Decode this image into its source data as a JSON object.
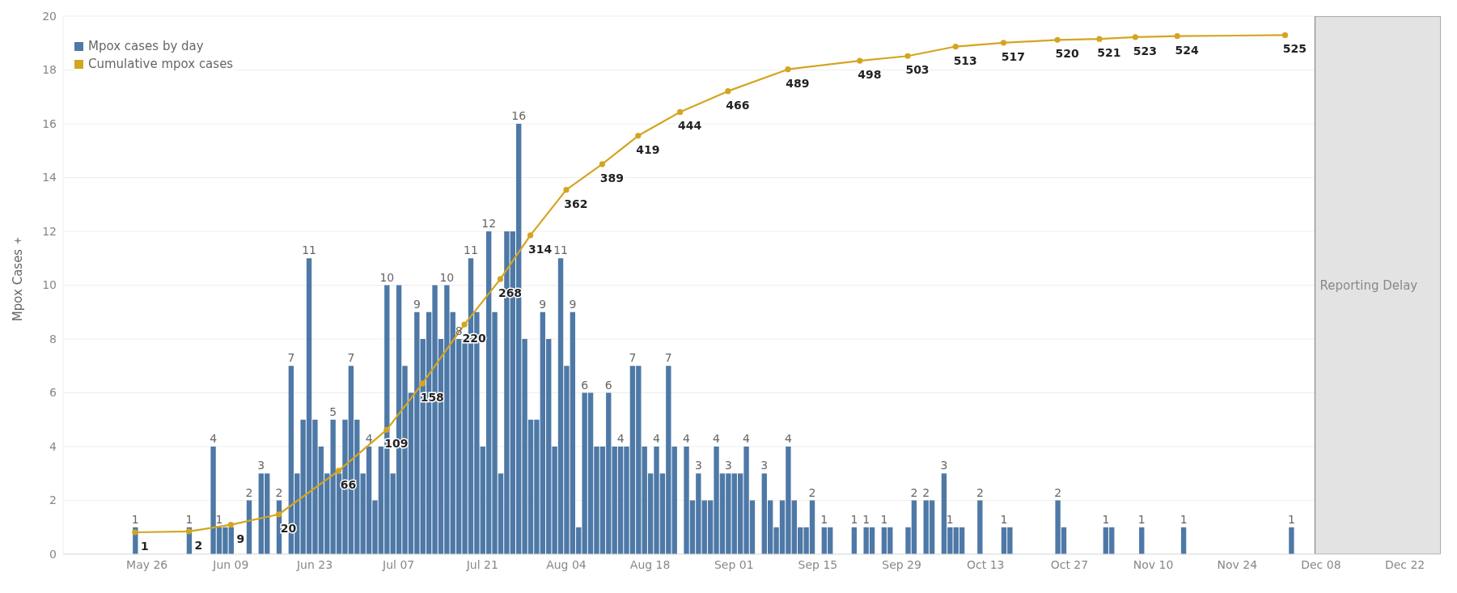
{
  "chart_data": {
    "type": "bar",
    "ylabel": "Mpox Cases",
    "xlim": [
      "--05-12",
      "--12-28"
    ],
    "xticks": [
      {
        "value": "--05-26",
        "label": "May 26"
      },
      {
        "value": "--06-09",
        "label": "Jun 09"
      },
      {
        "value": "--06-23",
        "label": "Jun 23"
      },
      {
        "value": "--07-07",
        "label": "Jul 07"
      },
      {
        "value": "--07-21",
        "label": "Jul 21"
      },
      {
        "value": "--08-04",
        "label": "Aug 04"
      },
      {
        "value": "--08-18",
        "label": "Aug 18"
      },
      {
        "value": "--09-01",
        "label": "Sep 01"
      },
      {
        "value": "--09-15",
        "label": "Sep 15"
      },
      {
        "value": "--09-29",
        "label": "Sep 29"
      },
      {
        "value": "--10-13",
        "label": "Oct 13"
      },
      {
        "value": "--10-27",
        "label": "Oct 27"
      },
      {
        "value": "--11-10",
        "label": "Nov 10"
      },
      {
        "value": "--11-24",
        "label": "Nov 24"
      },
      {
        "value": "--12-08",
        "label": "Dec 08"
      },
      {
        "value": "--12-22",
        "label": "Dec 22"
      }
    ],
    "ylim": [
      0,
      20
    ],
    "yticks": [
      0,
      2,
      4,
      6,
      8,
      10,
      12,
      14,
      16,
      18,
      20
    ],
    "y2lim": [
      -22,
      545
    ],
    "grid": "y",
    "legend": "top left",
    "bands": [
      {
        "axis": "x",
        "from": "--12-07",
        "to": "--12-28",
        "label": "Reporting Delay",
        "color": "#e3e3e3"
      }
    ],
    "series": [
      {
        "name": "Mpox cases by day",
        "color": "#4e79a7",
        "x": [
          "--05-24",
          "--06-02",
          "--06-06",
          "--06-07",
          "--06-08",
          "--06-09",
          "--06-12",
          "--06-14",
          "--06-15",
          "--06-17",
          "--06-19",
          "--06-20",
          "--06-21",
          "--06-22",
          "--06-23",
          "--06-24",
          "--06-25",
          "--06-26",
          "--06-27",
          "--06-28",
          "--06-29",
          "--06-30",
          "--07-01",
          "--07-02",
          "--07-03",
          "--07-04",
          "--07-05",
          "--07-06",
          "--07-07",
          "--07-08",
          "--07-09",
          "--07-10",
          "--07-11",
          "--07-12",
          "--07-13",
          "--07-14",
          "--07-15",
          "--07-16",
          "--07-17",
          "--07-18",
          "--07-19",
          "--07-20",
          "--07-21",
          "--07-22",
          "--07-23",
          "--07-24",
          "--07-25",
          "--07-26",
          "--07-27",
          "--07-28",
          "--07-29",
          "--07-30",
          "--07-31",
          "--08-01",
          "--08-02",
          "--08-03",
          "--08-04",
          "--08-05",
          "--08-06",
          "--08-07",
          "--08-08",
          "--08-09",
          "--08-10",
          "--08-11",
          "--08-12",
          "--08-13",
          "--08-14",
          "--08-15",
          "--08-16",
          "--08-17",
          "--08-18",
          "--08-19",
          "--08-20",
          "--08-21",
          "--08-22",
          "--08-24",
          "--08-25",
          "--08-26",
          "--08-27",
          "--08-28",
          "--08-29",
          "--08-30",
          "--08-31",
          "--09-01",
          "--09-02",
          "--09-03",
          "--09-04",
          "--09-06",
          "--09-07",
          "--09-08",
          "--09-09",
          "--09-10",
          "--09-11",
          "--09-12",
          "--09-13",
          "--09-14",
          "--09-16",
          "--09-17",
          "--09-21",
          "--09-23",
          "--09-24",
          "--09-26",
          "--09-27",
          "--09-30",
          "--10-01",
          "--10-03",
          "--10-04",
          "--10-06",
          "--10-07",
          "--10-08",
          "--10-09",
          "--10-12",
          "--10-16",
          "--10-17",
          "--10-25",
          "--10-26",
          "--11-02",
          "--11-03",
          "--11-08",
          "--11-15",
          "--12-03"
        ],
        "values": [
          1,
          1,
          4,
          1,
          1,
          1,
          2,
          3,
          3,
          2,
          7,
          3,
          5,
          11,
          5,
          4,
          3,
          5,
          3,
          5,
          7,
          5,
          3,
          4,
          2,
          4,
          10,
          3,
          10,
          7,
          6,
          9,
          8,
          9,
          10,
          8,
          10,
          9,
          8,
          8,
          11,
          9,
          4,
          12,
          9,
          3,
          12,
          12,
          16,
          8,
          5,
          5,
          9,
          8,
          4,
          11,
          7,
          9,
          1,
          6,
          6,
          4,
          4,
          6,
          4,
          4,
          4,
          7,
          7,
          4,
          3,
          4,
          3,
          7,
          4,
          4,
          2,
          3,
          2,
          2,
          4,
          3,
          3,
          3,
          3,
          4,
          2,
          3,
          2,
          1,
          2,
          4,
          2,
          1,
          1,
          2,
          1,
          1,
          1,
          1,
          1,
          1,
          1,
          1,
          2,
          2,
          2,
          3,
          1,
          1,
          1,
          2,
          1,
          1,
          2,
          1,
          1,
          1,
          1,
          1,
          1
        ],
        "value_labels": [
          "1",
          "1",
          "4",
          "1",
          null,
          null,
          "2",
          "3",
          null,
          "2",
          "7",
          null,
          null,
          "11",
          null,
          null,
          null,
          "5",
          null,
          null,
          "7",
          null,
          null,
          "4",
          null,
          null,
          "10",
          null,
          null,
          null,
          null,
          "9",
          null,
          null,
          null,
          null,
          "10",
          null,
          "8",
          null,
          "11",
          null,
          null,
          "12",
          null,
          null,
          null,
          null,
          "16",
          null,
          null,
          null,
          "9",
          null,
          null,
          "11",
          null,
          "9",
          null,
          "6",
          null,
          null,
          null,
          "6",
          null,
          "4",
          null,
          "7",
          null,
          null,
          null,
          "4",
          null,
          "7",
          null,
          "4",
          null,
          "3",
          null,
          null,
          "4",
          null,
          "3",
          null,
          null,
          "4",
          null,
          "3",
          null,
          null,
          null,
          "4",
          null,
          null,
          null,
          "2",
          "1",
          null,
          "1",
          "1",
          null,
          "1",
          null,
          null,
          "2",
          "2",
          null,
          "3",
          "1",
          null,
          null,
          "2",
          "1",
          null,
          "2",
          null,
          "1",
          null,
          "1",
          "1",
          "1"
        ]
      },
      {
        "name": "Cumulative mpox cases",
        "type": "line",
        "axis": "y2",
        "color": "#d4a520",
        "marker": "circle",
        "x": [
          "--05-24",
          "--06-02",
          "--06-09",
          "--06-17",
          "--06-27",
          "--07-05",
          "--07-11",
          "--07-18",
          "--07-24",
          "--07-29",
          "--08-04",
          "--08-10",
          "--08-16",
          "--08-23",
          "--08-31",
          "--09-10",
          "--09-22",
          "--09-30",
          "--10-08",
          "--10-16",
          "--10-25",
          "--11-01",
          "--11-07",
          "--11-14",
          "--12-02"
        ],
        "values": [
          1,
          2,
          9,
          20,
          66,
          109,
          158,
          220,
          268,
          314,
          362,
          389,
          419,
          444,
          466,
          489,
          498,
          503,
          513,
          517,
          520,
          521,
          523,
          524,
          525
        ],
        "value_labels": [
          "1",
          "2",
          "9",
          "20",
          "66",
          "109",
          "158",
          "220",
          "268",
          "314",
          "362",
          "389",
          "419",
          "444",
          "466",
          "489",
          "498",
          "503",
          "513",
          "517",
          "520",
          "521",
          "523",
          "524",
          "525"
        ]
      }
    ]
  }
}
